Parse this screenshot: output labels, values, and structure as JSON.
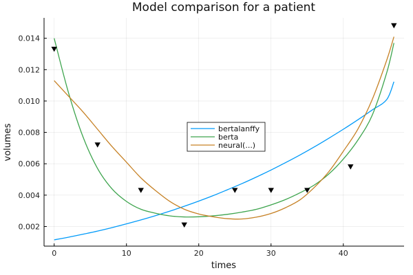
{
  "chart_data": {
    "type": "line",
    "title": "Model comparison for a patient",
    "xlabel": "times",
    "ylabel": "volumes",
    "xlim": [
      -1.4,
      48.4
    ],
    "ylim": [
      0.00075,
      0.0153
    ],
    "xticks": [
      0,
      10,
      20,
      30,
      40
    ],
    "xtick_labels": [
      "0",
      "10",
      "20",
      "30",
      "40"
    ],
    "yticks": [
      0.002,
      0.004,
      0.006,
      0.008,
      0.01,
      0.012,
      0.014
    ],
    "ytick_labels": [
      "0.002",
      "0.004",
      "0.006",
      "0.008",
      "0.010",
      "0.012",
      "0.014"
    ],
    "grid": true,
    "legend_position": "center",
    "x": [
      0,
      2,
      4,
      6,
      8,
      10,
      12,
      14,
      16,
      18,
      20,
      22,
      24,
      26,
      28,
      30,
      32,
      34,
      36,
      38,
      40,
      42,
      44,
      46,
      47
    ],
    "series": [
      {
        "name": "bertalanffy",
        "color": "#009af9",
        "values": [
          0.00115,
          0.00132,
          0.00151,
          0.00171,
          0.00193,
          0.00217,
          0.00242,
          0.00269,
          0.00298,
          0.00329,
          0.00362,
          0.00397,
          0.00435,
          0.00474,
          0.00516,
          0.0056,
          0.00607,
          0.00656,
          0.00708,
          0.00763,
          0.0082,
          0.0088,
          0.00943,
          0.01009,
          0.01123
        ]
      },
      {
        "name": "berta",
        "color": "#3da44d",
        "values": [
          0.014,
          0.0105,
          0.0077,
          0.0057,
          0.0044,
          0.0036,
          0.0031,
          0.00285,
          0.00268,
          0.00261,
          0.00262,
          0.00268,
          0.00278,
          0.00292,
          0.0031,
          0.00338,
          0.00372,
          0.00415,
          0.00465,
          0.00535,
          0.0063,
          0.0075,
          0.0091,
          0.0118,
          0.0137
        ]
      },
      {
        "name": "neural(...)",
        "color": "#c68125",
        "values": [
          0.0113,
          0.0103,
          0.0093,
          0.0082,
          0.0071,
          0.0061,
          0.0051,
          0.0043,
          0.0036,
          0.0031,
          0.0028,
          0.00262,
          0.0025,
          0.00248,
          0.0026,
          0.00283,
          0.0032,
          0.0037,
          0.0045,
          0.0055,
          0.0068,
          0.0082,
          0.0101,
          0.0126,
          0.0141
        ]
      }
    ],
    "observations": {
      "marker": "down-triangle",
      "color": "#000000",
      "x": [
        0,
        6,
        12,
        18,
        25,
        30,
        35,
        41,
        47
      ],
      "y": [
        0.0133,
        0.0072,
        0.0043,
        0.0021,
        0.0043,
        0.0043,
        0.0043,
        0.0058,
        0.0148
      ]
    }
  }
}
